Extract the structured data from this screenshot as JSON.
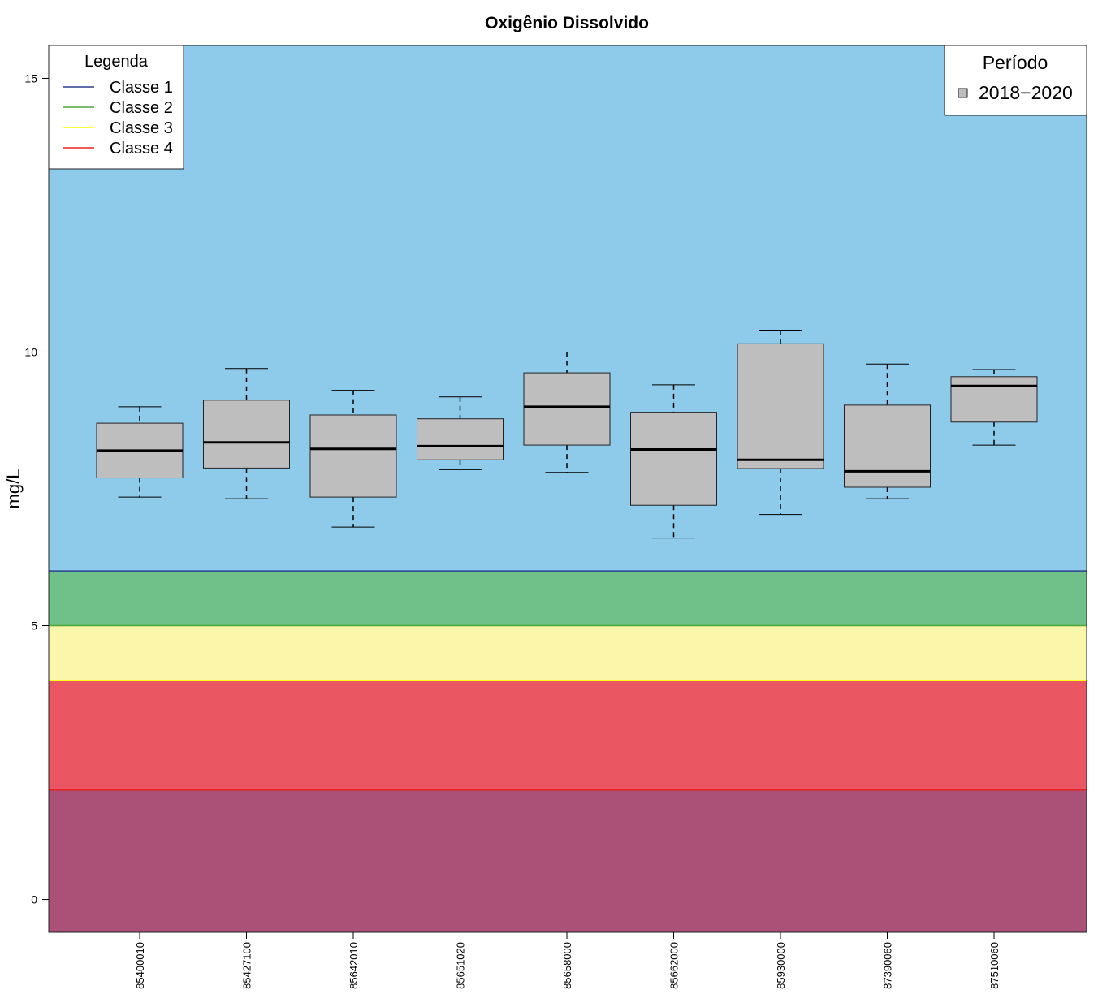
{
  "chart_data": {
    "type": "boxplot",
    "title": "Oxigênio Dissolvido",
    "ylabel": "mg/L",
    "xlabel": "",
    "ylim": [
      -0.6,
      15.6
    ],
    "yticks": [
      0,
      5,
      10,
      15
    ],
    "categories": [
      "85400010",
      "85427100",
      "85642010",
      "85651020",
      "85658000",
      "85662000",
      "85930000",
      "87390060",
      "87510060"
    ],
    "series": [
      {
        "name": "2018−2020",
        "color": "#bebebe",
        "boxes": [
          {
            "min": 7.35,
            "q1": 7.7,
            "median": 8.2,
            "q3": 8.7,
            "max": 9.0
          },
          {
            "min": 7.32,
            "q1": 7.88,
            "median": 8.35,
            "q3": 9.12,
            "max": 9.7
          },
          {
            "min": 6.8,
            "q1": 7.35,
            "median": 8.23,
            "q3": 8.85,
            "max": 9.3
          },
          {
            "min": 7.85,
            "q1": 8.03,
            "median": 8.28,
            "q3": 8.78,
            "max": 9.18
          },
          {
            "min": 7.8,
            "q1": 8.3,
            "median": 9.0,
            "q3": 9.62,
            "max": 10.0
          },
          {
            "min": 6.6,
            "q1": 7.2,
            "median": 8.22,
            "q3": 8.9,
            "max": 9.4
          },
          {
            "min": 7.03,
            "q1": 7.87,
            "median": 8.03,
            "q3": 10.15,
            "max": 10.4
          },
          {
            "min": 7.32,
            "q1": 7.53,
            "median": 7.82,
            "q3": 9.03,
            "max": 9.78
          },
          {
            "min": 8.3,
            "q1": 8.72,
            "median": 9.38,
            "q3": 9.55,
            "max": 9.68
          }
        ]
      }
    ],
    "bands": [
      {
        "from": -0.6,
        "to": 2.0,
        "color": "#ab5178"
      },
      {
        "from": 2.0,
        "to": 4.0,
        "color": "#ea5762"
      },
      {
        "from": 4.0,
        "to": 5.0,
        "color": "#fbf6aa"
      },
      {
        "from": 5.0,
        "to": 6.0,
        "color": "#70c08a"
      },
      {
        "from": 6.0,
        "to": 15.6,
        "color": "#8ecae9"
      }
    ],
    "thresholds": [
      {
        "name": "Classe 1",
        "value": 6,
        "color": "#2b3f8f"
      },
      {
        "name": "Classe 2",
        "value": 5,
        "color": "#4aa83a"
      },
      {
        "name": "Classe 3",
        "value": 4,
        "color": "#ffff00"
      },
      {
        "name": "Classe 4",
        "value": 2,
        "color": "#ee2222"
      }
    ],
    "legend_classes": {
      "title": "Legenda",
      "position": "top-left",
      "items": [
        {
          "label": "Classe 1",
          "color": "#2b3f8f"
        },
        {
          "label": "Classe 2",
          "color": "#4aa83a"
        },
        {
          "label": "Classe 3",
          "color": "#ffff00"
        },
        {
          "label": "Classe 4",
          "color": "#ee2222"
        }
      ]
    },
    "legend_period": {
      "title": "Período",
      "position": "top-right",
      "items": [
        {
          "label": "2018−2020",
          "color": "#bebebe"
        }
      ]
    },
    "grid": false
  }
}
